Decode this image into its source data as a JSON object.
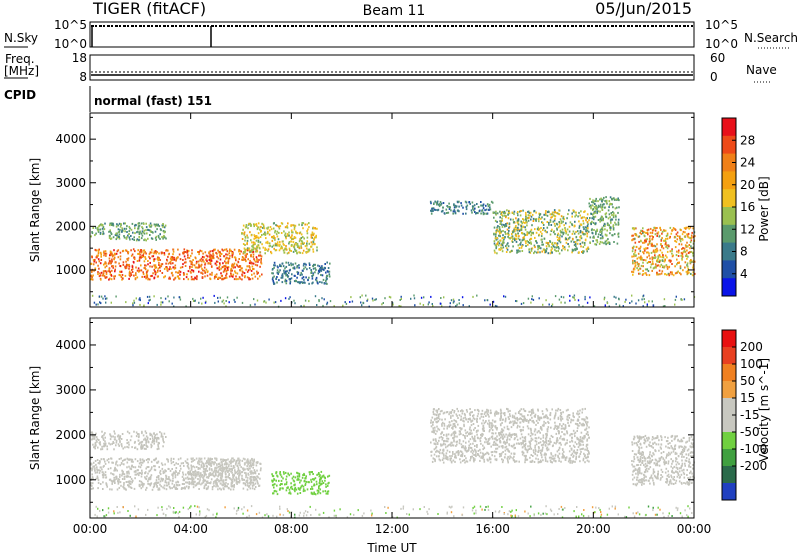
{
  "header": {
    "radar": "TIGER (fitACF)",
    "beam": "Beam 11",
    "date": "05/Jun/2015"
  },
  "status_panels": {
    "nsky": {
      "label": "N.Sky",
      "ticks": [
        "10^5",
        "10^0"
      ]
    },
    "nsearch": {
      "label": "N.Search",
      "ticks": [
        "10^5",
        "10^0"
      ]
    },
    "freq": {
      "label_top": "Freq.",
      "label_bottom": "[MHz]",
      "ticks": [
        "18",
        "8"
      ]
    },
    "nave": {
      "label": "Nave",
      "ticks": [
        "60",
        "0"
      ]
    },
    "cpid": {
      "label": "CPID",
      "value": "normal (fast) 151"
    }
  },
  "colors": {
    "power_scale": [
      "#0a14e8",
      "#1f4fa6",
      "#3a7a8a",
      "#5a9a6c",
      "#9ac050",
      "#f0c020",
      "#f4a010",
      "#f08018",
      "#ee4a18",
      "#e8101a"
    ],
    "velocity_scale": [
      "#2040c0",
      "#2a6a4a",
      "#40a040",
      "#70d040",
      "#c8c8c0",
      "#c8c8c0",
      "#f0a040",
      "#f08020",
      "#e84020",
      "#e81010"
    ],
    "velocity_gray": "#c4c4bc"
  },
  "chart_data": [
    {
      "type": "heatmap",
      "title": "",
      "xlabel": "",
      "ylabel": "Slant Range [km]",
      "xlim": [
        "00:00",
        "24:00"
      ],
      "ylim": [
        150,
        4600
      ],
      "x_ticks": [
        "00:00",
        "04:00",
        "08:00",
        "12:00",
        "16:00",
        "20:00",
        "00:00"
      ],
      "y_ticks": [
        1000,
        2000,
        3000,
        4000
      ],
      "colorbar": {
        "label": "Power [dB]",
        "ticks": [
          4,
          8,
          12,
          16,
          20,
          24,
          28
        ],
        "range": [
          0,
          32
        ]
      },
      "regions": [
        {
          "t": [
            0,
            6.8
          ],
          "range_km": [
            800,
            1500
          ],
          "power_db": [
            20,
            30
          ]
        },
        {
          "t": [
            0,
            3
          ],
          "range_km": [
            1700,
            2100
          ],
          "power_db": [
            8,
            16
          ]
        },
        {
          "t": [
            6,
            9
          ],
          "range_km": [
            1400,
            2100
          ],
          "power_db": [
            12,
            20
          ]
        },
        {
          "t": [
            7.2,
            9.5
          ],
          "range_km": [
            700,
            1200
          ],
          "power_db": [
            4,
            12
          ]
        },
        {
          "t": [
            13.5,
            16
          ],
          "range_km": [
            2300,
            2600
          ],
          "power_db": [
            4,
            12
          ]
        },
        {
          "t": [
            16,
            19.8
          ],
          "range_km": [
            1400,
            2400
          ],
          "power_db": [
            8,
            20
          ]
        },
        {
          "t": [
            19.8,
            21
          ],
          "range_km": [
            1600,
            2700
          ],
          "power_db": [
            8,
            16
          ]
        },
        {
          "t": [
            21.5,
            24
          ],
          "range_km": [
            900,
            2000
          ],
          "power_db": [
            12,
            28
          ]
        }
      ]
    },
    {
      "type": "heatmap",
      "title": "",
      "xlabel": "Time UT",
      "ylabel": "Slant Range [km]",
      "xlim": [
        "00:00",
        "24:00"
      ],
      "ylim": [
        150,
        4600
      ],
      "x_ticks": [
        "00:00",
        "04:00",
        "08:00",
        "12:00",
        "16:00",
        "20:00",
        "00:00"
      ],
      "y_ticks": [
        1000,
        2000,
        3000,
        4000
      ],
      "colorbar": {
        "label": "Velocity [m s^-1]",
        "ticks": [
          200,
          100,
          50,
          15,
          -15,
          -50,
          -100,
          -200
        ],
        "range": [
          -250,
          250
        ]
      },
      "regions": [
        {
          "t": [
            0,
            6.8
          ],
          "range_km": [
            800,
            1500
          ],
          "velocity": [
            -15,
            15
          ]
        },
        {
          "t": [
            0,
            3
          ],
          "range_km": [
            1700,
            2100
          ],
          "velocity": [
            -15,
            15
          ]
        },
        {
          "t": [
            4,
            6.5
          ],
          "range_km": [
            900,
            1500
          ],
          "velocity": [
            -50,
            -15
          ]
        },
        {
          "t": [
            7.2,
            9.5
          ],
          "range_km": [
            700,
            1200
          ],
          "velocity": [
            15,
            50
          ]
        },
        {
          "t": [
            13.5,
            19.8
          ],
          "range_km": [
            1400,
            2600
          ],
          "velocity": [
            -15,
            15
          ]
        },
        {
          "t": [
            21.5,
            24
          ],
          "range_km": [
            900,
            2000
          ],
          "velocity": [
            -15,
            15
          ]
        }
      ]
    }
  ]
}
